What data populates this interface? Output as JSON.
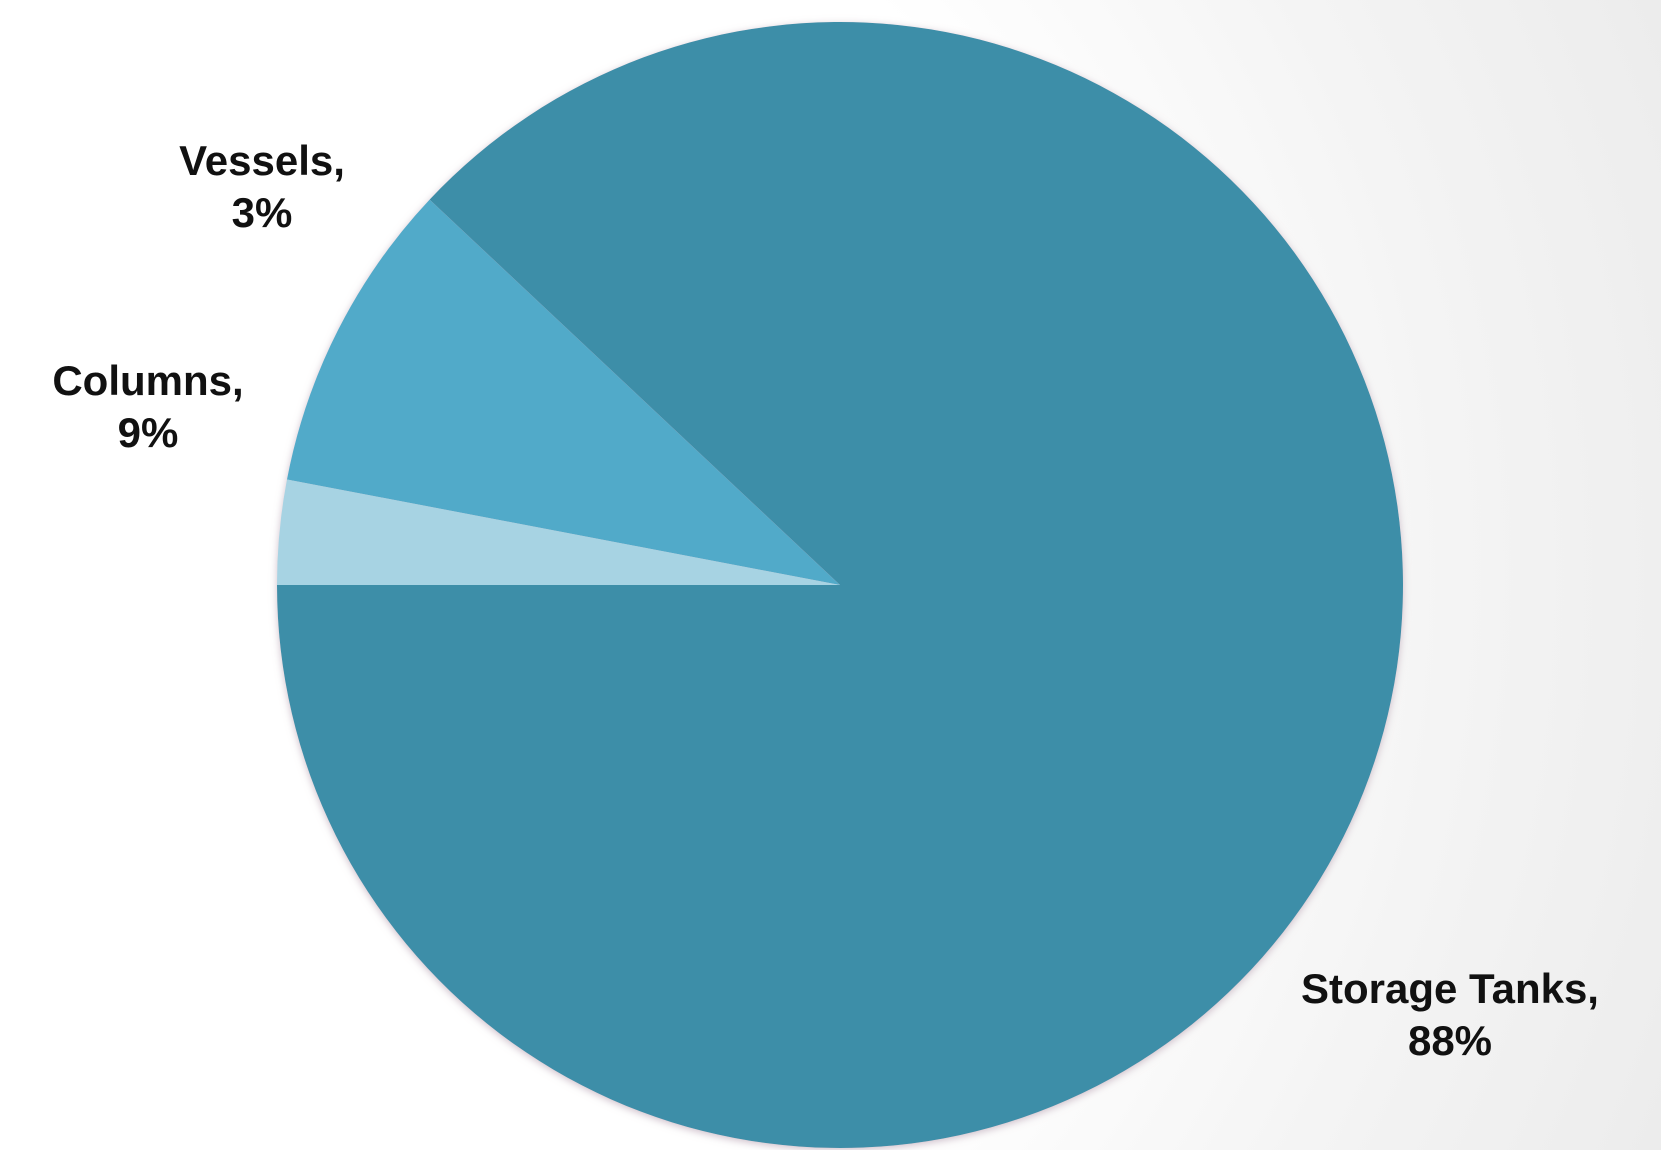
{
  "chart_data": {
    "type": "pie",
    "title": "",
    "slices": [
      {
        "label": "Storage Tanks",
        "value": 88,
        "display": "88%",
        "color": "#3e8ea8"
      },
      {
        "label": "Columns",
        "value": 9,
        "display": "9%",
        "color": "#51aac9"
      },
      {
        "label": "Vessels",
        "value": 3,
        "display": "3%",
        "color": "#a7d3e3"
      }
    ],
    "legend": "none",
    "data_labels": "outside"
  }
}
